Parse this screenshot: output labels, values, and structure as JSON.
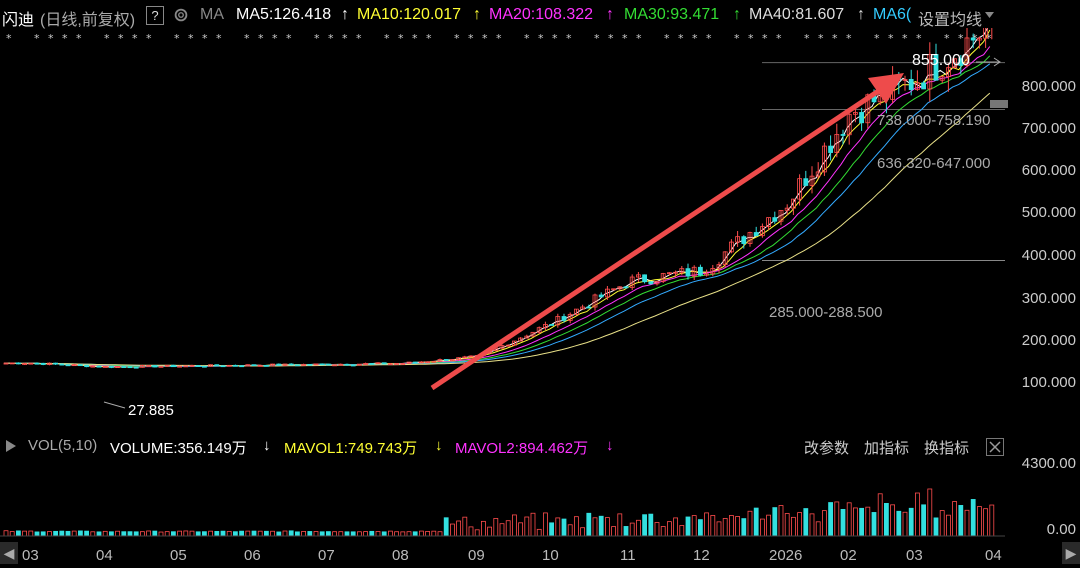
{
  "header": {
    "stock_name": "闪迪",
    "mode": "(日线,前复权)",
    "help": "?",
    "ma_label": "MA",
    "ma5": "MA5:126.418",
    "ma10": "MA10:120.017",
    "ma20": "MA20:108.322",
    "ma30": "MA30:93.471",
    "ma40": "MA40:81.607",
    "ma60": "MA6(",
    "settings": "设置均线",
    "arrow_up": "↑"
  },
  "annotations": {
    "high": "855.000",
    "low": "27.885",
    "band1": "738.000-758.190",
    "band2": "636.320-647.000",
    "band3": "285.000-288.500"
  },
  "y_axis": [
    "800.000",
    "700.000",
    "600.000",
    "500.000",
    "400.000",
    "300.000",
    "200.000",
    "100.000"
  ],
  "volume_header": {
    "title": "VOL(5,10)",
    "volume": "VOLUME:356.149万",
    "mavol1": "MAVOL1:749.743万",
    "mavol2": "MAVOL2:894.462万",
    "down": "↓",
    "btn_params": "改参数",
    "btn_add": "加指标",
    "btn_switch": "换指标"
  },
  "vol_axis": {
    "top": "4300.00",
    "bottom": "0.00"
  },
  "x_axis": [
    "03",
    "04",
    "05",
    "06",
    "07",
    "08",
    "09",
    "10",
    "11",
    "12",
    "2026",
    "02",
    "03",
    "04"
  ],
  "nav": {
    "left": "◀",
    "right": "▶"
  },
  "colors": {
    "up": "#ff4d4d",
    "down": "#33e0e0",
    "ma5": "#ffffff",
    "ma10": "#ffff33",
    "ma20": "#ff33ff",
    "ma30": "#33dd33",
    "ma40": "#33aaff",
    "ma60": "#e8e088",
    "arrow": "#ee4b4b"
  },
  "chart_data": {
    "type": "candlestick",
    "x": [
      "03",
      "04",
      "05",
      "06",
      "07",
      "08",
      "09",
      "10",
      "11",
      "12",
      "2026",
      "02",
      "03",
      "04"
    ],
    "close": [
      45,
      36,
      38,
      40,
      42,
      44,
      60,
      140,
      240,
      265,
      430,
      640,
      720,
      855
    ],
    "high_point": 855.0,
    "low_point": 27.885,
    "ylim": [
      0,
      880
    ],
    "series": [
      {
        "name": "MA5",
        "values": [
          45,
          37,
          38,
          40,
          42,
          44,
          58,
          135,
          235,
          262,
          420,
          630,
          715,
          126.418
        ]
      },
      {
        "name": "MA10",
        "values": [
          45,
          38,
          38,
          40,
          42,
          44,
          55,
          128,
          228,
          258,
          405,
          615,
          705,
          120.017
        ]
      },
      {
        "name": "MA20",
        "values": [
          45,
          39,
          38,
          40,
          42,
          44,
          52,
          118,
          215,
          252,
          380,
          590,
          690,
          108.322
        ]
      },
      {
        "name": "MA30",
        "values": [
          45,
          40,
          38,
          40,
          42,
          44,
          50,
          108,
          200,
          245,
          355,
          560,
          670,
          93.471
        ]
      },
      {
        "name": "MA40",
        "values": [
          45,
          41,
          39,
          40,
          42,
          44,
          48,
          98,
          185,
          235,
          330,
          530,
          645,
          81.607
        ]
      }
    ],
    "volume": {
      "ylim": [
        0,
        4300
      ],
      "last": 356.149,
      "mavol1": 749.743,
      "mavol2": 894.462
    }
  }
}
